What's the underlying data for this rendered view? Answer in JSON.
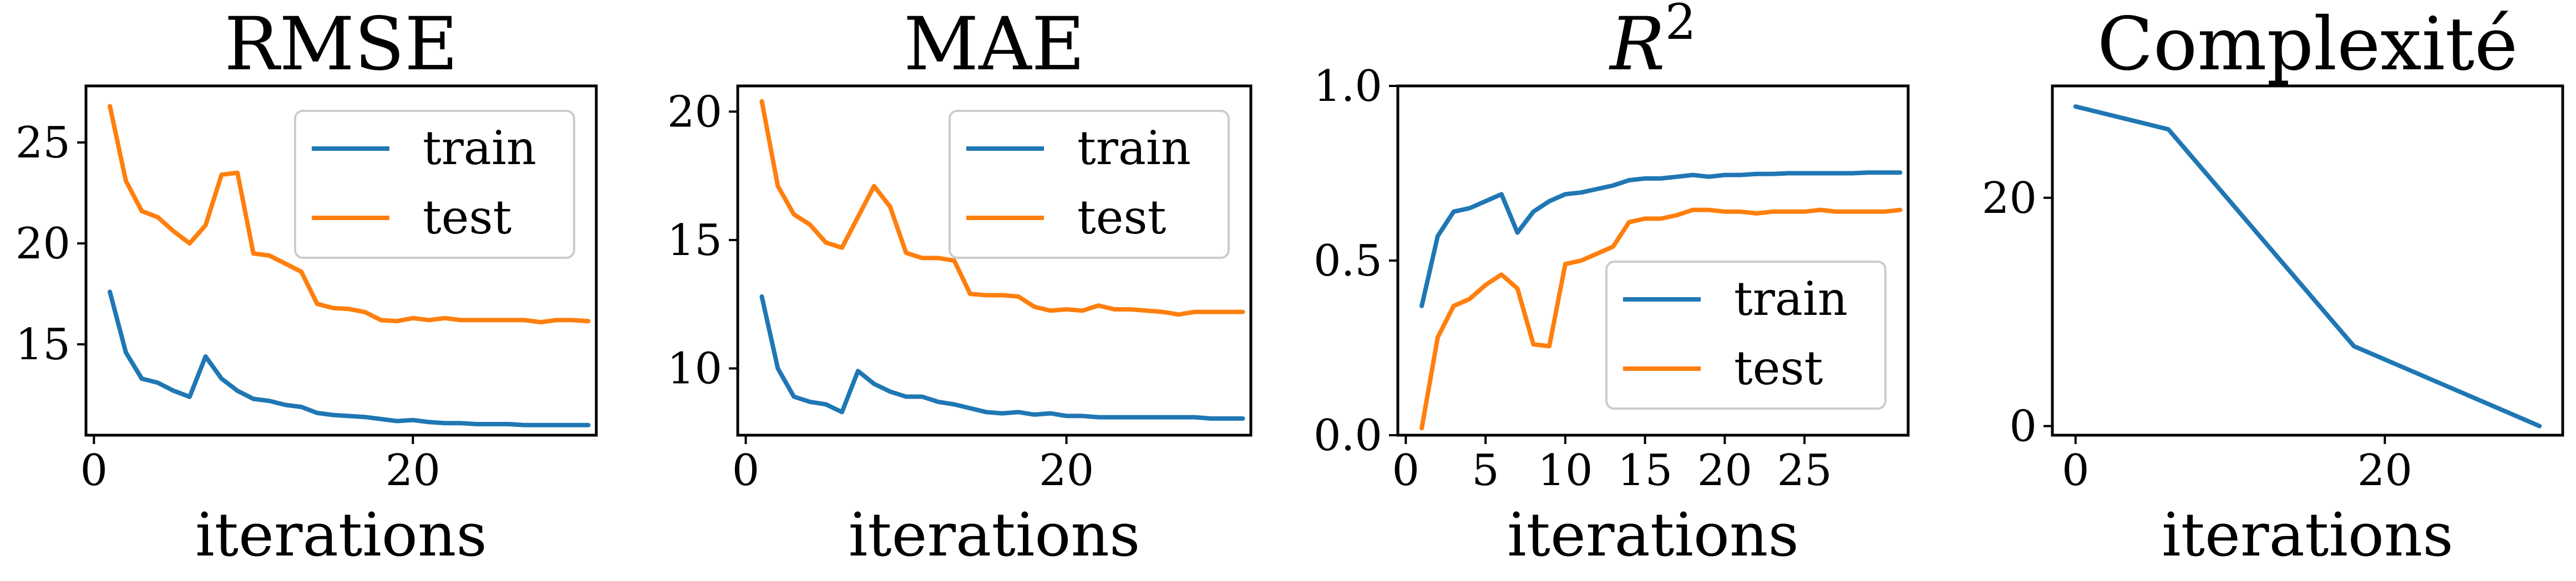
{
  "colors": {
    "train": "#1f77b4",
    "test": "#ff7f0e"
  },
  "chart_data": [
    {
      "type": "line",
      "title": "RMSE",
      "xlabel": "iterations",
      "xlim": [
        -0.5,
        31.5
      ],
      "ylim": [
        10.5,
        27.8
      ],
      "xticks": [
        0,
        20
      ],
      "yticks": [
        15,
        20,
        25
      ],
      "legend": "top-right",
      "grid": false,
      "series": [
        {
          "name": "train",
          "color": "#1f77b4",
          "x": [
            1,
            2,
            3,
            4,
            5,
            6,
            7,
            8,
            9,
            10,
            11,
            12,
            13,
            14,
            15,
            16,
            17,
            18,
            19,
            20,
            21,
            22,
            23,
            24,
            25,
            26,
            27,
            28,
            29,
            30,
            31
          ],
          "y": [
            17.6,
            14.6,
            13.3,
            13.1,
            12.7,
            12.4,
            14.4,
            13.3,
            12.7,
            12.3,
            12.2,
            12.0,
            11.9,
            11.6,
            11.5,
            11.45,
            11.4,
            11.3,
            11.2,
            11.25,
            11.15,
            11.1,
            11.1,
            11.05,
            11.05,
            11.05,
            11.0,
            11.0,
            11.0,
            11.0,
            11.0
          ]
        },
        {
          "name": "test",
          "color": "#ff7f0e",
          "x": [
            1,
            2,
            3,
            4,
            5,
            6,
            7,
            8,
            9,
            10,
            11,
            12,
            13,
            14,
            15,
            16,
            17,
            18,
            19,
            20,
            21,
            22,
            23,
            24,
            25,
            26,
            27,
            28,
            29,
            30,
            31
          ],
          "y": [
            26.8,
            23.1,
            21.6,
            21.3,
            20.6,
            20.0,
            20.9,
            23.4,
            23.5,
            19.5,
            19.4,
            19.0,
            18.6,
            17.0,
            16.8,
            16.75,
            16.6,
            16.2,
            16.15,
            16.3,
            16.2,
            16.3,
            16.2,
            16.2,
            16.2,
            16.2,
            16.2,
            16.1,
            16.2,
            16.2,
            16.15
          ]
        }
      ]
    },
    {
      "type": "line",
      "title": "MAE",
      "xlabel": "iterations",
      "xlim": [
        -0.5,
        31.5
      ],
      "ylim": [
        7.4,
        21.0
      ],
      "xticks": [
        0,
        20
      ],
      "yticks": [
        10,
        15,
        20
      ],
      "legend": "top-right",
      "grid": false,
      "series": [
        {
          "name": "train",
          "color": "#1f77b4",
          "x": [
            1,
            2,
            3,
            4,
            5,
            6,
            7,
            8,
            9,
            10,
            11,
            12,
            13,
            14,
            15,
            16,
            17,
            18,
            19,
            20,
            21,
            22,
            23,
            24,
            25,
            26,
            27,
            28,
            29,
            30,
            31
          ],
          "y": [
            12.8,
            10.0,
            8.9,
            8.7,
            8.6,
            8.3,
            9.9,
            9.4,
            9.1,
            8.9,
            8.9,
            8.7,
            8.6,
            8.45,
            8.3,
            8.25,
            8.3,
            8.2,
            8.25,
            8.15,
            8.15,
            8.1,
            8.1,
            8.1,
            8.1,
            8.1,
            8.1,
            8.1,
            8.05,
            8.05,
            8.05
          ]
        },
        {
          "name": "test",
          "color": "#ff7f0e",
          "x": [
            1,
            2,
            3,
            4,
            5,
            6,
            7,
            8,
            9,
            10,
            11,
            12,
            13,
            14,
            15,
            16,
            17,
            18,
            19,
            20,
            21,
            22,
            23,
            24,
            25,
            26,
            27,
            28,
            29,
            30,
            31
          ],
          "y": [
            20.4,
            17.1,
            16.0,
            15.6,
            14.9,
            14.7,
            15.9,
            17.1,
            16.3,
            14.5,
            14.3,
            14.3,
            14.2,
            12.9,
            12.85,
            12.85,
            12.8,
            12.4,
            12.25,
            12.3,
            12.25,
            12.45,
            12.3,
            12.3,
            12.25,
            12.2,
            12.1,
            12.2,
            12.2,
            12.2,
            12.2
          ]
        }
      ]
    },
    {
      "type": "line",
      "title": "R",
      "title_sup": "2",
      "xlabel": "iterations",
      "xlim": [
        -0.5,
        31.5
      ],
      "ylim": [
        0.0,
        1.0
      ],
      "xticks": [
        0,
        5,
        10,
        15,
        20,
        25
      ],
      "yticks": [
        "0.0",
        "0.5",
        "1.0"
      ],
      "legend": "lower-right",
      "grid": false,
      "series": [
        {
          "name": "train",
          "color": "#1f77b4",
          "x": [
            1,
            2,
            3,
            4,
            5,
            6,
            7,
            8,
            9,
            10,
            11,
            12,
            13,
            14,
            15,
            16,
            17,
            18,
            19,
            20,
            21,
            22,
            23,
            24,
            25,
            26,
            27,
            28,
            29,
            30,
            31
          ],
          "y": [
            0.37,
            0.57,
            0.64,
            0.65,
            0.67,
            0.69,
            0.58,
            0.64,
            0.67,
            0.69,
            0.695,
            0.705,
            0.715,
            0.73,
            0.735,
            0.735,
            0.74,
            0.745,
            0.74,
            0.745,
            0.745,
            0.748,
            0.748,
            0.75,
            0.75,
            0.75,
            0.75,
            0.75,
            0.752,
            0.752,
            0.752
          ]
        },
        {
          "name": "test",
          "color": "#ff7f0e",
          "x": [
            1,
            2,
            3,
            4,
            5,
            6,
            7,
            8,
            9,
            10,
            11,
            12,
            13,
            14,
            15,
            16,
            17,
            18,
            19,
            20,
            21,
            22,
            23,
            24,
            25,
            26,
            27,
            28,
            29,
            30,
            31
          ],
          "y": [
            0.02,
            0.28,
            0.37,
            0.39,
            0.43,
            0.46,
            0.42,
            0.26,
            0.255,
            0.49,
            0.5,
            0.52,
            0.54,
            0.61,
            0.62,
            0.62,
            0.63,
            0.645,
            0.645,
            0.64,
            0.64,
            0.635,
            0.64,
            0.64,
            0.64,
            0.645,
            0.64,
            0.64,
            0.64,
            0.64,
            0.645
          ]
        }
      ]
    },
    {
      "type": "line",
      "title": "Complexité",
      "xlabel": "iterations",
      "xlim": [
        -1.5,
        31.5
      ],
      "ylim": [
        -0.8,
        29.8
      ],
      "xticks": [
        0,
        20
      ],
      "yticks": [
        0,
        20
      ],
      "grid": false,
      "series": [
        {
          "color": "#1f77b4",
          "x": [
            0,
            6,
            18,
            30
          ],
          "y": [
            28,
            26,
            7,
            0
          ]
        }
      ]
    }
  ]
}
